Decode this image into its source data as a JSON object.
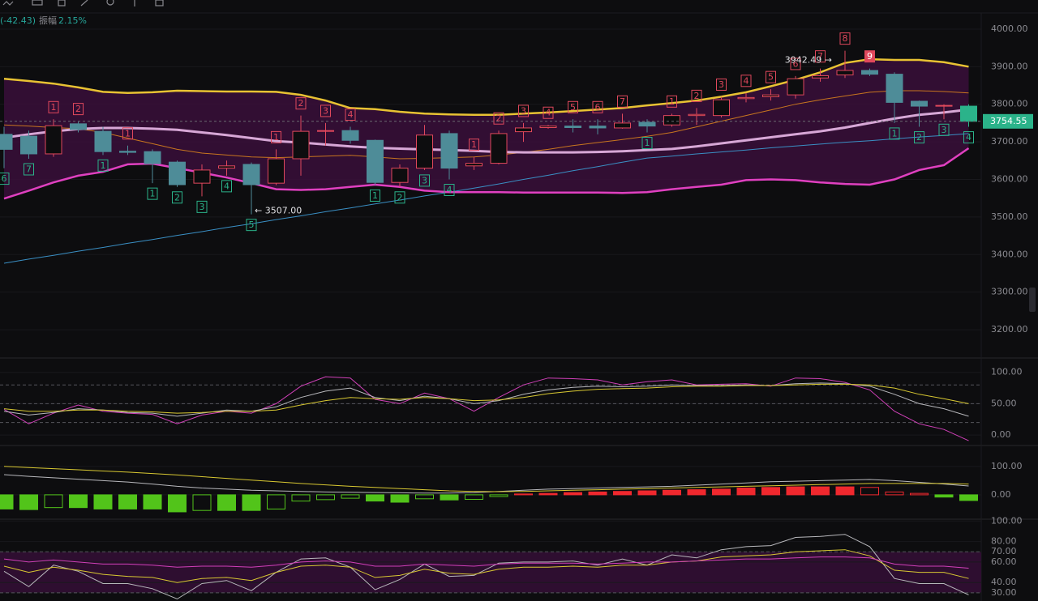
{
  "chart_data": [
    {
      "type": "candlestick",
      "header": {
        "change": "(-42.43)",
        "amplitude_label": "振幅",
        "amplitude": "2.15%"
      },
      "ylim": [
        3129,
        4043
      ],
      "yticks": [
        {
          "value": 4000,
          "label": "4000.00"
        },
        {
          "value": 3900,
          "label": "3900.00"
        },
        {
          "value": 3800,
          "label": "3800.00"
        },
        {
          "value": 3700,
          "label": "3700.00"
        },
        {
          "value": 3600,
          "label": "3600.00"
        },
        {
          "value": 3500,
          "label": "3500.00"
        },
        {
          "value": 3400,
          "label": "3400.00"
        },
        {
          "value": 3300,
          "label": "3300.00"
        },
        {
          "value": 3200,
          "label": "3200.00"
        }
      ],
      "up_color": "#e0485c",
      "down_color": "#4e8c98",
      "last_color": "#2bb38a",
      "open": [
        3720,
        3715,
        3668,
        3748,
        3728,
        3675,
        3674,
        3646,
        3590,
        3630,
        3640,
        3590,
        3655,
        3728,
        3730,
        3704,
        3592,
        3630,
        3722,
        3636,
        3643,
        3727,
        3738,
        3742,
        3742,
        3737,
        3752,
        3745,
        3770,
        3770,
        3815,
        3820,
        3825,
        3870,
        3878,
        3890,
        3880,
        3808,
        3795,
        3795
      ],
      "high": [
        3740,
        3730,
        3760,
        3755,
        3740,
        3690,
        3680,
        3650,
        3640,
        3650,
        3645,
        3680,
        3770,
        3750,
        3740,
        3706,
        3640,
        3745,
        3730,
        3660,
        3730,
        3750,
        3745,
        3760,
        3760,
        3775,
        3760,
        3775,
        3790,
        3820,
        3830,
        3840,
        3875,
        3895,
        3942.49,
        3895,
        3885,
        3810,
        3800,
        3800
      ],
      "low": [
        3630,
        3655,
        3660,
        3725,
        3665,
        3665,
        3590,
        3580,
        3555,
        3610,
        3507,
        3585,
        3610,
        3690,
        3695,
        3585,
        3580,
        3625,
        3600,
        3625,
        3640,
        3700,
        3735,
        3725,
        3720,
        3735,
        3725,
        3740,
        3745,
        3765,
        3805,
        3810,
        3815,
        3860,
        3870,
        3875,
        3750,
        3740,
        3760,
        3740
      ],
      "close": [
        3680,
        3668,
        3743,
        3733,
        3674,
        3672,
        3642,
        3586,
        3625,
        3636,
        3586,
        3655,
        3728,
        3730,
        3704,
        3592,
        3630,
        3718,
        3630,
        3643,
        3722,
        3737,
        3742,
        3738,
        3737,
        3750,
        3742,
        3770,
        3773,
        3812,
        3818,
        3825,
        3868,
        3876,
        3890,
        3880,
        3805,
        3795,
        3797,
        3754.55
      ],
      "last_price": 3754.55,
      "high_label": {
        "value": 3942.49,
        "label": "3942.49 →"
      },
      "low_label": {
        "value": 3507,
        "label": "← 3507.00"
      },
      "td_up": [
        null,
        null,
        1,
        2,
        null,
        1,
        null,
        null,
        null,
        null,
        null,
        1,
        2,
        3,
        4,
        null,
        null,
        null,
        null,
        1,
        2,
        3,
        4,
        5,
        6,
        7,
        null,
        1,
        2,
        3,
        4,
        5,
        6,
        7,
        8,
        9,
        null,
        null,
        null,
        null
      ],
      "td_down": [
        6,
        7,
        null,
        null,
        1,
        null,
        1,
        2,
        3,
        4,
        5,
        null,
        null,
        null,
        null,
        1,
        2,
        3,
        4,
        null,
        null,
        null,
        null,
        null,
        null,
        null,
        1,
        null,
        null,
        null,
        null,
        null,
        null,
        null,
        null,
        null,
        1,
        2,
        3,
        4
      ],
      "band_fill": "#3a0f3a",
      "series": [
        {
          "color": "#3a8fc4",
          "width": 1,
          "values": [
            3377,
            3388,
            3398,
            3409,
            3419,
            3430,
            3440,
            3451,
            3461,
            3472,
            3482,
            3493,
            3503,
            3514,
            3524,
            3535,
            3545,
            3556,
            3566,
            3577,
            3588,
            3600,
            3611,
            3623,
            3634,
            3646,
            3657,
            3662,
            3668,
            3673,
            3678,
            3684,
            3689,
            3694,
            3699,
            3703,
            3708,
            3713,
            3717,
            3722
          ]
        },
        {
          "color": "#c8761f",
          "width": 1,
          "values": [
            3745,
            3742,
            3738,
            3735,
            3725,
            3710,
            3695,
            3680,
            3670,
            3665,
            3660,
            3658,
            3660,
            3662,
            3664,
            3660,
            3655,
            3656,
            3658,
            3660,
            3665,
            3672,
            3680,
            3690,
            3698,
            3706,
            3715,
            3725,
            3740,
            3755,
            3770,
            3785,
            3800,
            3812,
            3822,
            3832,
            3836,
            3836,
            3834,
            3830
          ]
        },
        {
          "color": "#e8c233",
          "width": 2.5,
          "band": "upper",
          "values": [
            3868,
            3862,
            3855,
            3845,
            3833,
            3830,
            3832,
            3836,
            3835,
            3834,
            3834,
            3833,
            3825,
            3810,
            3790,
            3787,
            3780,
            3775,
            3773,
            3772,
            3772,
            3775,
            3778,
            3782,
            3786,
            3790,
            3797,
            3803,
            3810,
            3820,
            3832,
            3848,
            3865,
            3885,
            3910,
            3920,
            3918,
            3918,
            3912,
            3900
          ]
        },
        {
          "color": "#d7a7d6",
          "width": 3,
          "values": [
            3711,
            3720,
            3728,
            3734,
            3737,
            3737,
            3735,
            3732,
            3725,
            3718,
            3710,
            3702,
            3698,
            3693,
            3688,
            3684,
            3682,
            3680,
            3678,
            3676,
            3673,
            3672,
            3672,
            3672,
            3673,
            3675,
            3678,
            3681,
            3688,
            3696,
            3704,
            3712,
            3720,
            3728,
            3738,
            3750,
            3762,
            3772,
            3778,
            3786
          ]
        },
        {
          "color": "#e040c0",
          "width": 2.5,
          "band": "lower",
          "values": [
            3549,
            3570,
            3592,
            3610,
            3620,
            3640,
            3642,
            3630,
            3618,
            3605,
            3590,
            3574,
            3572,
            3574,
            3580,
            3586,
            3580,
            3570,
            3566,
            3566,
            3566,
            3565,
            3565,
            3565,
            3565,
            3564,
            3566,
            3574,
            3580,
            3586,
            3598,
            3600,
            3598,
            3592,
            3588,
            3586,
            3600,
            3625,
            3638,
            3683
          ]
        }
      ]
    },
    {
      "type": "line",
      "ylim": [
        -14,
        119
      ],
      "yticks": [
        {
          "value": 100,
          "label": "100.00"
        },
        {
          "value": 50,
          "label": "50.00"
        },
        {
          "value": 0,
          "label": "0.00"
        }
      ],
      "levels": [
        80,
        50,
        20
      ],
      "series": [
        {
          "color": "#d040b8",
          "values": [
            41,
            18,
            35,
            48,
            38,
            35,
            33,
            18,
            32,
            38,
            35,
            50,
            78,
            93,
            91,
            57,
            50,
            67,
            58,
            38,
            60,
            80,
            91,
            90,
            88,
            80,
            85,
            88,
            80,
            81,
            82,
            78,
            91,
            90,
            84,
            72,
            38,
            18,
            9,
            -9
          ]
        },
        {
          "color": "#b8b8bc",
          "values": [
            38,
            32,
            36,
            42,
            40,
            36,
            35,
            30,
            35,
            40,
            38,
            45,
            60,
            70,
            75,
            60,
            55,
            62,
            58,
            50,
            55,
            65,
            72,
            76,
            78,
            77,
            78,
            80,
            79,
            79,
            80,
            79,
            82,
            83,
            82,
            78,
            65,
            50,
            42,
            30
          ]
        },
        {
          "color": "#d8c832",
          "values": [
            42,
            38,
            38,
            40,
            40,
            38,
            37,
            35,
            36,
            38,
            38,
            40,
            48,
            55,
            60,
            58,
            57,
            60,
            58,
            55,
            56,
            60,
            66,
            70,
            73,
            74,
            75,
            77,
            78,
            78,
            79,
            79,
            80,
            81,
            81,
            80,
            75,
            65,
            58,
            50
          ]
        }
      ]
    },
    {
      "type": "macd",
      "ylim": [
        -83,
        168
      ],
      "yticks": [
        {
          "value": 100,
          "label": "100.00"
        },
        {
          "value": 0,
          "label": "0.00"
        }
      ],
      "up_color": "#f0282e",
      "down_color": "#52c41a",
      "values": [
        -50,
        -52,
        -45,
        -45,
        -50,
        -50,
        -50,
        -60,
        -55,
        -55,
        -55,
        -50,
        -22,
        -17,
        -12,
        -22,
        -26,
        -14,
        -18,
        -16,
        -6,
        3,
        5,
        8,
        10,
        12,
        14,
        16,
        18,
        20,
        24,
        26,
        28,
        28,
        28,
        26,
        10,
        5,
        -8,
        -20
      ],
      "series": [
        {
          "color": "#b8b8bc",
          "values": [
            71,
            65,
            60,
            55,
            50,
            45,
            38,
            30,
            24,
            20,
            16,
            14,
            12,
            10,
            9,
            8,
            7,
            6,
            6,
            8,
            12,
            16,
            20,
            22,
            24,
            26,
            28,
            30,
            34,
            38,
            42,
            46,
            48,
            50,
            52,
            54,
            50,
            44,
            38,
            31
          ]
        },
        {
          "color": "#d8c832",
          "values": [
            100,
            96,
            92,
            88,
            84,
            80,
            75,
            70,
            64,
            58,
            52,
            46,
            40,
            35,
            30,
            26,
            22,
            18,
            14,
            12,
            11,
            12,
            14,
            16,
            18,
            20,
            22,
            24,
            26,
            28,
            30,
            32,
            34,
            36,
            38,
            40,
            40,
            40,
            40,
            38
          ]
        }
      ]
    },
    {
      "type": "line",
      "ylim": [
        22,
        101
      ],
      "yticks": [
        {
          "value": 100,
          "label": "100.00"
        },
        {
          "value": 80,
          "label": "80.00"
        },
        {
          "value": 70,
          "label": "70.00"
        },
        {
          "value": 60,
          "label": "60.00"
        },
        {
          "value": 40,
          "label": "40.00"
        },
        {
          "value": 30,
          "label": "30.00"
        }
      ],
      "levels": [
        70,
        30
      ],
      "shade": "#2e0e30",
      "series": [
        {
          "color": "#b8b8bc",
          "values": [
            51,
            36,
            57,
            51,
            39,
            39,
            34,
            24,
            39,
            42,
            32,
            50,
            63,
            64,
            55,
            33,
            43,
            58,
            46,
            47,
            59,
            60,
            60,
            61,
            57,
            63,
            57,
            67,
            64,
            72,
            75,
            76,
            84,
            85,
            87,
            75,
            44,
            39,
            39,
            28
          ]
        },
        {
          "color": "#d8c832",
          "values": [
            56,
            50,
            55,
            52,
            48,
            46,
            45,
            40,
            44,
            45,
            42,
            50,
            56,
            57,
            55,
            45,
            47,
            53,
            49,
            48,
            53,
            55,
            55,
            56,
            55,
            57,
            57,
            60,
            61,
            65,
            66,
            67,
            70,
            71,
            72,
            66,
            52,
            50,
            50,
            44
          ]
        },
        {
          "color": "#d040b8",
          "values": [
            63,
            60,
            62,
            60,
            58,
            58,
            57,
            55,
            56,
            56,
            55,
            57,
            60,
            61,
            60,
            56,
            56,
            58,
            57,
            56,
            58,
            59,
            59,
            59,
            58,
            59,
            60,
            60,
            61,
            62,
            63,
            63,
            64,
            65,
            65,
            64,
            58,
            56,
            56,
            54
          ]
        }
      ]
    }
  ]
}
